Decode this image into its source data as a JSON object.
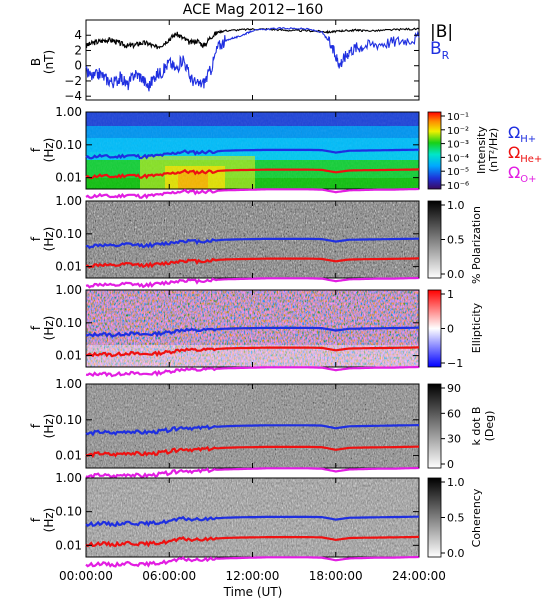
{
  "chart_data": [
    {
      "type": "line",
      "title": "ACE Mag 2012−160",
      "ylabel": "B",
      "yunit": "(nT)",
      "ylim": [
        -4.5,
        6.0
      ],
      "yticks": [
        -4,
        -2,
        0,
        2,
        4
      ],
      "xlim": [
        0,
        24
      ],
      "xunit": "hours UT",
      "legend": [
        {
          "label": "|B|",
          "color": "#000000"
        },
        {
          "label": "B",
          "sub": "R",
          "color": "#1f2fe0"
        }
      ],
      "series": [
        {
          "name": "|B|",
          "color": "#000000",
          "x": [
            0,
            0.5,
            1,
            1.5,
            2,
            2.5,
            3,
            3.5,
            4,
            4.5,
            5,
            5.5,
            6,
            6.5,
            7,
            7.5,
            8,
            8.5,
            9,
            9.5,
            10,
            11,
            12,
            13,
            14,
            15,
            16,
            17,
            17.5,
            18,
            18.5,
            19,
            19.5,
            20,
            21,
            22,
            23,
            24
          ],
          "y": [
            2.6,
            3.0,
            3.2,
            3.4,
            3.3,
            2.9,
            2.6,
            2.7,
            3.0,
            2.9,
            2.4,
            2.8,
            3.5,
            4.2,
            3.6,
            3.0,
            3.3,
            2.6,
            3.8,
            4.4,
            4.6,
            4.7,
            4.8,
            4.8,
            4.7,
            4.6,
            4.6,
            4.5,
            4.4,
            4.5,
            4.6,
            4.6,
            4.7,
            4.6,
            4.6,
            4.7,
            4.8,
            4.8
          ]
        },
        {
          "name": "B_R",
          "color": "#1f2fe0",
          "x": [
            0,
            0.5,
            1,
            1.5,
            2,
            2.5,
            3,
            3.5,
            4,
            4.5,
            5,
            5.5,
            6,
            6.5,
            7,
            7.5,
            8,
            8.5,
            9,
            9.5,
            10,
            10.5,
            11,
            11.5,
            12,
            13,
            14,
            15,
            16,
            17,
            17.5,
            18,
            18.3,
            18.6,
            19,
            19.5,
            20,
            21,
            22,
            23,
            24
          ],
          "y": [
            -0.8,
            -1.5,
            -1.0,
            -1.8,
            -2.2,
            -1.5,
            -2.6,
            -1.0,
            -1.5,
            -2.8,
            -1.2,
            -0.8,
            0.5,
            -0.5,
            1.0,
            -1.5,
            -2.5,
            -2.2,
            -0.5,
            2.5,
            3.2,
            3.6,
            3.8,
            4.2,
            4.6,
            4.8,
            4.9,
            4.9,
            4.8,
            4.4,
            3.2,
            1.2,
            0.2,
            1.0,
            2.0,
            2.4,
            2.6,
            2.9,
            3.1,
            3.4,
            3.7
          ]
        }
      ]
    },
    {
      "type": "heatmap",
      "quantity": "Intensity",
      "ylabel": "f",
      "yunit": "(Hz)",
      "ylim": [
        0.0045,
        1.0
      ],
      "yscale": "log",
      "yticks": [
        "1.00",
        "0.10",
        "0.01"
      ],
      "colorbar": {
        "label": "Intensity",
        "unit": "(nT²/Hz)",
        "scale": "log",
        "ticks": [
          "10⁻¹",
          "10⁻²",
          "10⁻³",
          "10⁻⁴",
          "10⁻⁵",
          "10⁻⁶"
        ],
        "colors": [
          "#3a0a5e",
          "#1e32d8",
          "#00a8ff",
          "#00e6c8",
          "#18d018",
          "#f0f000",
          "#ff8c00",
          "#ff0000"
        ]
      },
      "legend": [
        {
          "label": "Ω",
          "sub": "H+",
          "color": "#1f2fe0"
        },
        {
          "label": "Ω",
          "sub": "He+",
          "color": "#ee1111"
        },
        {
          "label": "Ω",
          "sub": "O+",
          "color": "#e21ee2"
        }
      ]
    },
    {
      "type": "heatmap",
      "quantity": "% Polarization",
      "ylabel": "f",
      "yunit": "(Hz)",
      "yscale": "log",
      "yticks": [
        "1.00",
        "0.10",
        "0.01"
      ],
      "colorbar": {
        "label": "% Polarization",
        "ticks": [
          "1.0",
          "0.5",
          "0.0"
        ],
        "colors": [
          "#000000",
          "#ffffff"
        ]
      }
    },
    {
      "type": "heatmap",
      "quantity": "Ellipticity",
      "ylabel": "f",
      "yunit": "(Hz)",
      "yscale": "log",
      "yticks": [
        "1.00",
        "0.10",
        "0.01"
      ],
      "colorbar": {
        "label": "Ellipticity",
        "ticks": [
          "1",
          "0",
          "−1"
        ],
        "colors": [
          "#ff0000",
          "#ffffff",
          "#0000ff"
        ]
      }
    },
    {
      "type": "heatmap",
      "quantity": "k dot B",
      "ylabel": "f",
      "yunit": "(Hz)",
      "yscale": "log",
      "yticks": [
        "1.00",
        "0.10",
        "0.01"
      ],
      "colorbar": {
        "label": "k dot B",
        "unit": "(Deg)",
        "ticks": [
          "90",
          "60",
          "30",
          "0"
        ],
        "colors": [
          "#000000",
          "#ffffff"
        ]
      }
    },
    {
      "type": "heatmap",
      "quantity": "Coherency",
      "ylabel": "f",
      "yunit": "(Hz)",
      "yscale": "log",
      "yticks": [
        "1.00",
        "0.10",
        "0.01"
      ],
      "colorbar": {
        "label": "Coherency",
        "ticks": [
          "1.0",
          "0.5",
          "0.0"
        ],
        "colors": [
          "#000000",
          "#ffffff"
        ]
      },
      "xlabel": "Time (UT)",
      "xticks": [
        "00:00:00",
        "06:00:00",
        "12:00:00",
        "18:00:00",
        "24:00:00"
      ]
    }
  ],
  "gyrofrequency_lines": {
    "x": [
      0,
      1,
      2,
      3,
      4,
      5,
      6,
      7,
      8,
      9,
      10,
      11,
      12,
      13,
      14,
      15,
      16,
      17,
      18,
      19,
      20,
      21,
      22,
      23,
      24
    ],
    "H+": [
      0.04,
      0.046,
      0.042,
      0.048,
      0.044,
      0.046,
      0.052,
      0.062,
      0.058,
      0.062,
      0.066,
      0.068,
      0.069,
      0.07,
      0.07,
      0.07,
      0.07,
      0.069,
      0.058,
      0.066,
      0.067,
      0.068,
      0.069,
      0.07,
      0.071
    ],
    "He+": [
      0.01,
      0.0115,
      0.0105,
      0.012,
      0.011,
      0.0115,
      0.013,
      0.0155,
      0.0145,
      0.0155,
      0.0165,
      0.017,
      0.0172,
      0.0175,
      0.0175,
      0.0175,
      0.0175,
      0.0172,
      0.0145,
      0.0165,
      0.0168,
      0.017,
      0.0172,
      0.0175,
      0.0178
    ],
    "O+": [
      0.0025,
      0.0029,
      0.0026,
      0.003,
      0.0027,
      0.0029,
      0.0033,
      0.0039,
      0.0036,
      0.0039,
      0.0041,
      0.0042,
      0.0043,
      0.0044,
      0.0044,
      0.0044,
      0.0044,
      0.0043,
      0.0036,
      0.0041,
      0.0042,
      0.0043,
      0.0043,
      0.0044,
      0.0045
    ]
  }
}
